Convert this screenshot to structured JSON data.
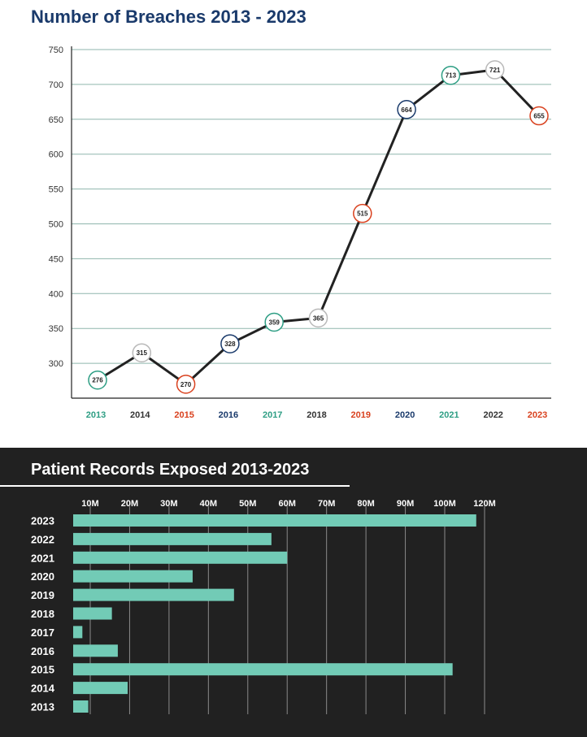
{
  "chart_data": [
    {
      "type": "line",
      "title": "Number of Breaches 2013 - 2023",
      "xlabel": "",
      "ylabel": "",
      "ylim": [
        250,
        750
      ],
      "yticks": [
        300,
        350,
        400,
        450,
        500,
        550,
        600,
        650,
        700,
        750
      ],
      "x": [
        "2013",
        "2014",
        "2015",
        "2016",
        "2017",
        "2018",
        "2019",
        "2020",
        "2021",
        "2022",
        "2023"
      ],
      "values": [
        276,
        315,
        270,
        328,
        359,
        365,
        515,
        664,
        713,
        721,
        655
      ],
      "point_colors": [
        "#2e9e84",
        "#b9b9b9",
        "#d9411e",
        "#1a3a6b",
        "#2e9e84",
        "#b9b9b9",
        "#d9411e",
        "#1a3a6b",
        "#2e9e84",
        "#b9b9b9",
        "#d9411e"
      ],
      "label_colors": [
        "#2e9e84",
        "#333333",
        "#d9411e",
        "#1a3a6b",
        "#2e9e84",
        "#333333",
        "#d9411e",
        "#1a3a6b",
        "#2e9e84",
        "#333333",
        "#d9411e"
      ],
      "grid": true,
      "line_color": "#222222"
    },
    {
      "type": "bar",
      "orientation": "horizontal",
      "title": "Patient Records Exposed 2013-2023",
      "xlabel": "",
      "ylabel": "",
      "xlim": [
        6,
        120
      ],
      "xticks": [
        10,
        20,
        30,
        40,
        50,
        60,
        70,
        80,
        90,
        100,
        120
      ],
      "xtick_labels": [
        "10M",
        "20M",
        "30M",
        "40M",
        "50M",
        "60M",
        "70M",
        "80M",
        "90M",
        "100M",
        "120M"
      ],
      "categories": [
        "2023",
        "2022",
        "2021",
        "2020",
        "2019",
        "2018",
        "2017",
        "2016",
        "2015",
        "2014",
        "2013"
      ],
      "values": [
        108,
        56,
        60,
        36,
        46.5,
        15.5,
        8,
        17,
        102,
        19.5,
        9.5
      ],
      "units": "M",
      "bar_color": "#72cbb6",
      "background": "#212121",
      "grid": true
    }
  ]
}
